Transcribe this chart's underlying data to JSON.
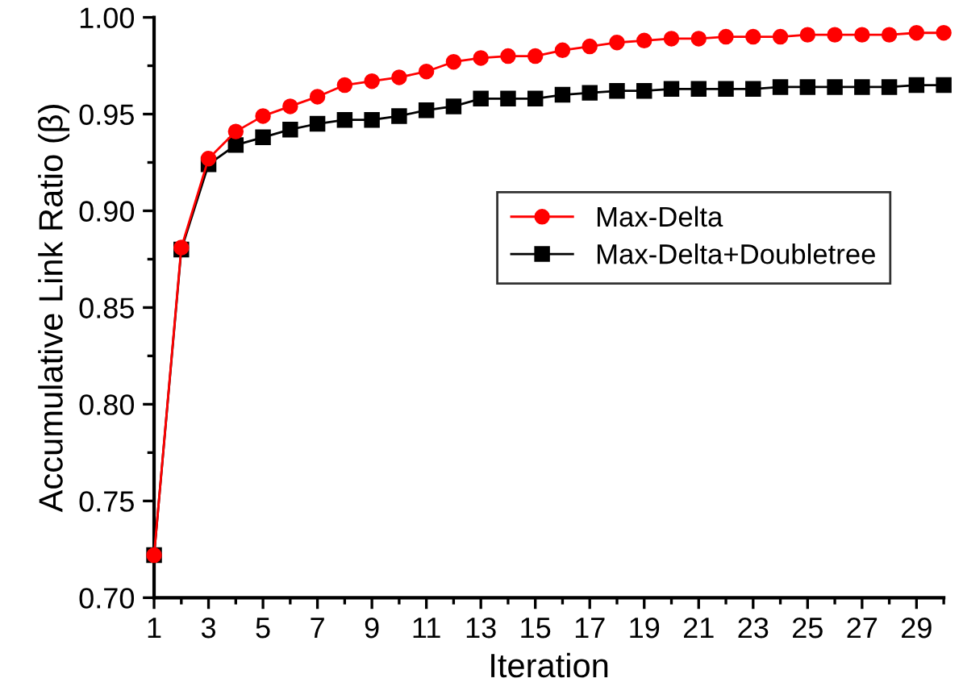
{
  "chart_data": {
    "type": "line",
    "xlabel": "Iteration",
    "ylabel": "Accumulative Link Ratio (β)",
    "x": [
      1,
      2,
      3,
      4,
      5,
      6,
      7,
      8,
      9,
      10,
      11,
      12,
      13,
      14,
      15,
      16,
      17,
      18,
      19,
      20,
      21,
      22,
      23,
      24,
      25,
      26,
      27,
      28,
      29,
      30
    ],
    "series": [
      {
        "name": "Max-Delta",
        "color": "#ff0000",
        "marker": "circle",
        "values": [
          0.722,
          0.881,
          0.927,
          0.941,
          0.949,
          0.954,
          0.959,
          0.965,
          0.967,
          0.969,
          0.972,
          0.977,
          0.979,
          0.98,
          0.98,
          0.983,
          0.985,
          0.987,
          0.988,
          0.989,
          0.989,
          0.99,
          0.99,
          0.99,
          0.991,
          0.991,
          0.991,
          0.991,
          0.992,
          0.992
        ]
      },
      {
        "name": "Max-Delta+Doubletree",
        "color": "#000000",
        "marker": "square",
        "values": [
          0.722,
          0.88,
          0.924,
          0.934,
          0.938,
          0.942,
          0.945,
          0.947,
          0.947,
          0.949,
          0.952,
          0.954,
          0.958,
          0.958,
          0.958,
          0.96,
          0.961,
          0.962,
          0.962,
          0.963,
          0.963,
          0.963,
          0.963,
          0.964,
          0.964,
          0.964,
          0.964,
          0.964,
          0.965,
          0.965
        ]
      }
    ],
    "xlim": [
      1,
      30
    ],
    "xticks": [
      1,
      {
        "value": 2,
        "label": null
      },
      3,
      {
        "value": 4,
        "label": null
      },
      5,
      {
        "value": 6,
        "label": null
      },
      7,
      {
        "value": 8,
        "label": null
      },
      9,
      {
        "value": 10,
        "label": null
      },
      11,
      {
        "value": 12,
        "label": null
      },
      13,
      {
        "value": 14,
        "label": null
      },
      15,
      {
        "value": 16,
        "label": null
      },
      17,
      {
        "value": 18,
        "label": null
      },
      19,
      {
        "value": 20,
        "label": null
      },
      21,
      {
        "value": 22,
        "label": null
      },
      23,
      {
        "value": 24,
        "label": null
      },
      25,
      {
        "value": 26,
        "label": null
      },
      27,
      {
        "value": 28,
        "label": null
      },
      29,
      {
        "value": 30,
        "label": null
      }
    ],
    "ylim": [
      0.7,
      1.0
    ],
    "yticks": [
      {
        "value": 0.7,
        "label": "0.70"
      },
      {
        "value": 0.725,
        "label": null
      },
      {
        "value": 0.75,
        "label": "0.75"
      },
      {
        "value": 0.775,
        "label": null
      },
      {
        "value": 0.8,
        "label": "0.80"
      },
      {
        "value": 0.825,
        "label": null
      },
      {
        "value": 0.85,
        "label": "0.85"
      },
      {
        "value": 0.875,
        "label": null
      },
      {
        "value": 0.9,
        "label": "0.90"
      },
      {
        "value": 0.925,
        "label": null
      },
      {
        "value": 0.95,
        "label": "0.95"
      },
      {
        "value": 0.975,
        "label": null
      },
      {
        "value": 1.0,
        "label": "1.00"
      }
    ],
    "grid": false,
    "legend": "right",
    "line_style": "solid"
  }
}
